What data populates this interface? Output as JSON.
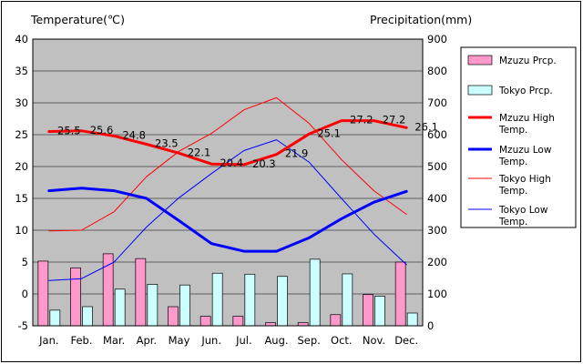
{
  "chart_data": {
    "type": "combo",
    "y_left_label": "Temperature(℃)",
    "y_right_label": "Precipitation(mm)",
    "months": [
      "Jan.",
      "Feb.",
      "Mar.",
      "Apr.",
      "May",
      "Jun.",
      "Jul.",
      "Aug.",
      "Sep.",
      "Oct.",
      "Nov.",
      "Dec."
    ],
    "y_left_ticks": [
      "40",
      "35",
      "30",
      "25",
      "20",
      "15",
      "10",
      "5",
      "0",
      "-5"
    ],
    "y_right_ticks": [
      "900",
      "800",
      "700",
      "600",
      "500",
      "400",
      "300",
      "200",
      "100",
      "0"
    ],
    "y_left_range": [
      -5,
      40
    ],
    "y_right_range": [
      0,
      900
    ],
    "grid": true,
    "legend_position": "right",
    "colors": {
      "plot_bg": "#c0c0c0",
      "mzuzu_prcp": "#ff99cc",
      "tokyo_prcp": "#ccffff",
      "mzuzu_high": "#ff0000",
      "mzuzu_low": "#0000ff",
      "tokyo_high": "#ff0000",
      "tokyo_low": "#0000ff"
    },
    "series": [
      {
        "key": "mzuzu_prcp",
        "name": "Mzuzu Prcp.",
        "kind": "bar",
        "axis": "right",
        "values": [
          203,
          182,
          226,
          211,
          60,
          30,
          30,
          10,
          10,
          35,
          98,
          200
        ]
      },
      {
        "key": "tokyo_prcp",
        "name": "Tokyo Prcp.",
        "kind": "bar",
        "axis": "right",
        "values": [
          49,
          60,
          115,
          130,
          128,
          165,
          162,
          155,
          209,
          163,
          93,
          40
        ]
      },
      {
        "key": "mzuzu_high",
        "name": "Mzuzu High Temp.",
        "kind": "line",
        "axis": "left",
        "width": 3,
        "values": [
          25.5,
          25.6,
          24.8,
          23.5,
          22.1,
          20.4,
          20.3,
          21.9,
          25.1,
          27.2,
          27.2,
          26.1
        ]
      },
      {
        "key": "mzuzu_low",
        "name": "Mzuzu Low Temp.",
        "kind": "line",
        "axis": "left",
        "width": 3,
        "values": [
          16.2,
          16.6,
          16.2,
          15.0,
          11.5,
          7.9,
          6.7,
          6.7,
          8.8,
          11.8,
          14.4,
          16.1
        ]
      },
      {
        "key": "tokyo_high",
        "name": "Tokyo High Temp.",
        "kind": "line",
        "axis": "left",
        "width": 1,
        "values": [
          9.9,
          10.0,
          12.9,
          18.4,
          22.4,
          25.2,
          28.9,
          30.8,
          26.8,
          21.1,
          16.2,
          12.5
        ]
      },
      {
        "key": "tokyo_low",
        "name": "Tokyo Low Temp.",
        "kind": "line",
        "axis": "left",
        "width": 1,
        "values": [
          2.1,
          2.4,
          5.0,
          10.5,
          15.1,
          18.9,
          22.5,
          24.2,
          20.7,
          15.0,
          9.4,
          4.6
        ]
      }
    ],
    "data_labels": {
      "series": "mzuzu_high",
      "values": [
        "25.5",
        "25.6",
        "24.8",
        "23.5",
        "22.1",
        "20.4",
        "20.3",
        "21.9",
        "25.1",
        "27.2",
        "27.2",
        "26.1"
      ]
    }
  }
}
